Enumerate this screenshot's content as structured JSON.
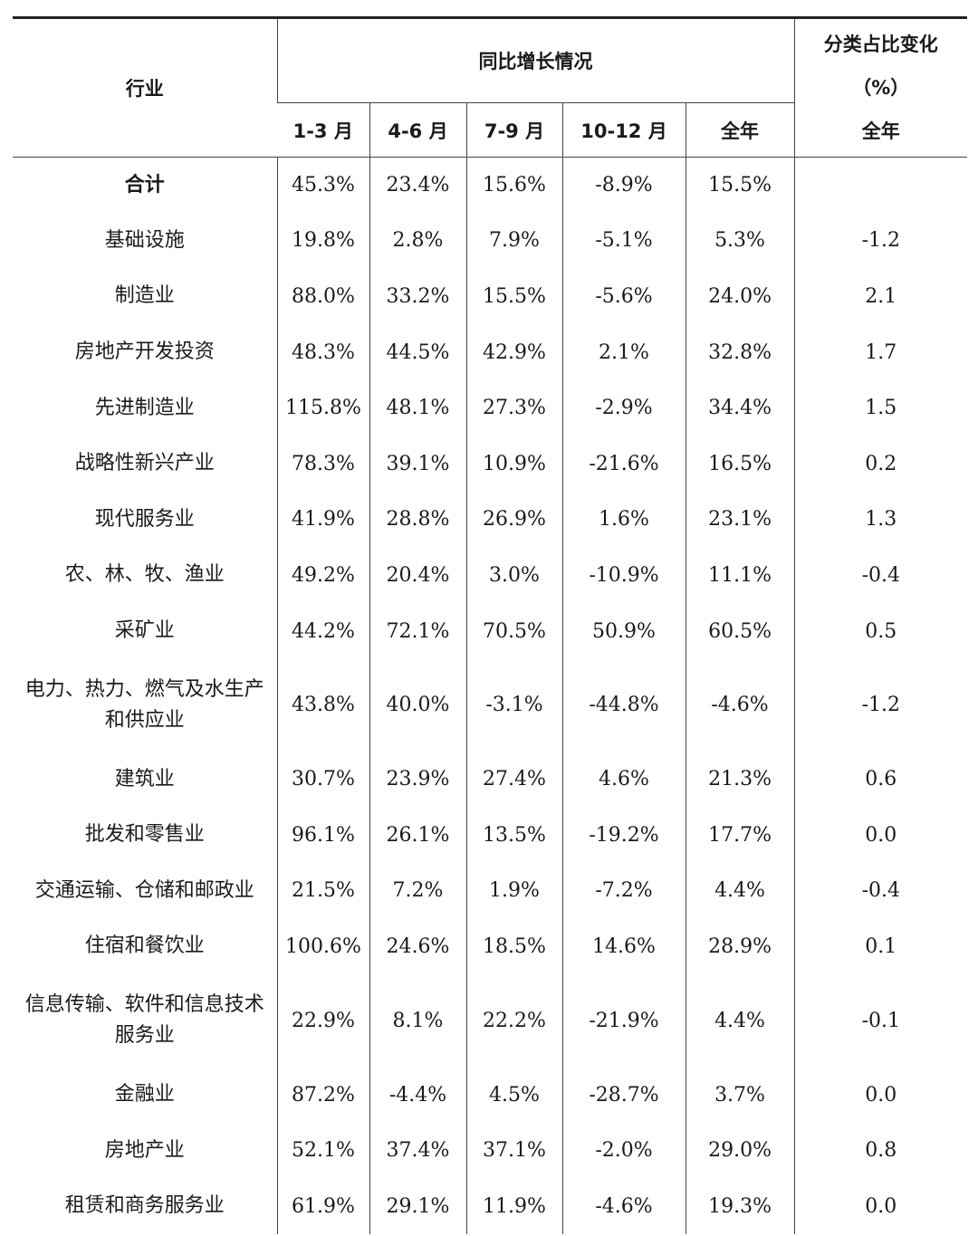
{
  "header": {
    "industry": "行业",
    "growth_group": "同比增长情况",
    "periods": [
      "1-3 月",
      "4-6 月",
      "7-9 月",
      "10-12 月",
      "全年"
    ],
    "share_title_line1": "分类占比变化",
    "share_title_line2": "（%）",
    "share_sub": "全年"
  },
  "rows": [
    {
      "name": "合计",
      "values": [
        "45.3%",
        "23.4%",
        "15.6%",
        "-8.9%",
        "15.5%"
      ],
      "share": ""
    },
    {
      "name": "基础设施",
      "values": [
        "19.8%",
        "2.8%",
        "7.9%",
        "-5.1%",
        "5.3%"
      ],
      "share": "-1.2"
    },
    {
      "name": "制造业",
      "values": [
        "88.0%",
        "33.2%",
        "15.5%",
        "-5.6%",
        "24.0%"
      ],
      "share": "2.1"
    },
    {
      "name": "房地产开发投资",
      "values": [
        "48.3%",
        "44.5%",
        "42.9%",
        "2.1%",
        "32.8%"
      ],
      "share": "1.7"
    },
    {
      "name": "先进制造业",
      "values": [
        "115.8%",
        "48.1%",
        "27.3%",
        "-2.9%",
        "34.4%"
      ],
      "share": "1.5"
    },
    {
      "name": "战略性新兴产业",
      "values": [
        "78.3%",
        "39.1%",
        "10.9%",
        "-21.6%",
        "16.5%"
      ],
      "share": "0.2"
    },
    {
      "name": "现代服务业",
      "values": [
        "41.9%",
        "28.8%",
        "26.9%",
        "1.6%",
        "23.1%"
      ],
      "share": "1.3"
    },
    {
      "name": "农、林、牧、渔业",
      "values": [
        "49.2%",
        "20.4%",
        "3.0%",
        "-10.9%",
        "11.1%"
      ],
      "share": "-0.4"
    },
    {
      "name": "采矿业",
      "values": [
        "44.2%",
        "72.1%",
        "70.5%",
        "50.9%",
        "60.5%"
      ],
      "share": "0.5"
    },
    {
      "name": "电力、热力、燃气及水生产和供应业",
      "values": [
        "43.8%",
        "40.0%",
        "-3.1%",
        "-44.8%",
        "-4.6%"
      ],
      "share": "-1.2"
    },
    {
      "name": "建筑业",
      "values": [
        "30.7%",
        "23.9%",
        "27.4%",
        "4.6%",
        "21.3%"
      ],
      "share": "0.6"
    },
    {
      "name": "批发和零售业",
      "values": [
        "96.1%",
        "26.1%",
        "13.5%",
        "-19.2%",
        "17.7%"
      ],
      "share": "0.0"
    },
    {
      "name": "交通运输、仓储和邮政业",
      "values": [
        "21.5%",
        "7.2%",
        "1.9%",
        "-7.2%",
        "4.4%"
      ],
      "share": "-0.4"
    },
    {
      "name": "住宿和餐饮业",
      "values": [
        "100.6%",
        "24.6%",
        "18.5%",
        "14.6%",
        "28.9%"
      ],
      "share": "0.1"
    },
    {
      "name": "信息传输、软件和信息技术服务业",
      "values": [
        "22.9%",
        "8.1%",
        "22.2%",
        "-21.9%",
        "4.4%"
      ],
      "share": "-0.1"
    },
    {
      "name": "金融业",
      "values": [
        "87.2%",
        "-4.4%",
        "4.5%",
        "-28.7%",
        "3.7%"
      ],
      "share": "0.0"
    },
    {
      "name": "房地产业",
      "values": [
        "52.1%",
        "37.4%",
        "37.1%",
        "-2.0%",
        "29.0%"
      ],
      "share": "0.8"
    },
    {
      "name": "租赁和商务服务业",
      "values": [
        "61.9%",
        "29.1%",
        "11.9%",
        "-4.6%",
        "19.3%"
      ],
      "share": "0.0"
    }
  ]
}
